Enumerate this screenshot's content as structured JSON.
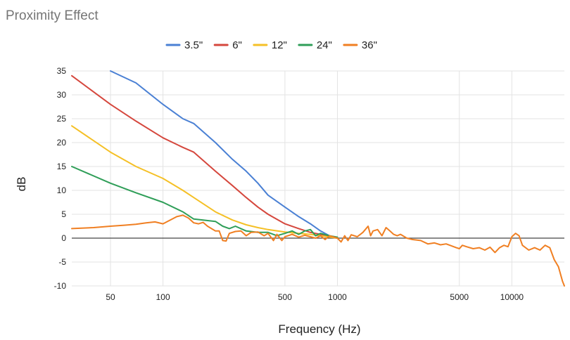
{
  "chart_data": {
    "type": "line",
    "title": "Proximity Effect",
    "xlabel": "Frequency (Hz)",
    "ylabel": "dB",
    "xscale": "log",
    "xlim": [
      30,
      20000
    ],
    "ylim": [
      -10,
      35
    ],
    "xticks": [
      {
        "value": 50,
        "label": "50"
      },
      {
        "value": 100,
        "label": "100"
      },
      {
        "value": 500,
        "label": "500"
      },
      {
        "value": 1000,
        "label": "1000"
      },
      {
        "value": 5000,
        "label": "5000"
      },
      {
        "value": 10000,
        "label": "10000"
      }
    ],
    "yticks": [
      {
        "value": 35,
        "label": "35"
      },
      {
        "value": 30,
        "label": "30"
      },
      {
        "value": 25,
        "label": "25"
      },
      {
        "value": 20,
        "label": "20"
      },
      {
        "value": 15,
        "label": "15"
      },
      {
        "value": 10,
        "label": "10"
      },
      {
        "value": 5,
        "label": "5"
      },
      {
        "value": 0,
        "label": "0"
      },
      {
        "value": -5,
        "label": "-5"
      },
      {
        "value": -10,
        "label": "-10"
      }
    ],
    "grid": true,
    "legend_position": "top",
    "series": [
      {
        "name": "3.5\"",
        "color": "#4a80d4",
        "points": [
          [
            50,
            35
          ],
          [
            70,
            32.5
          ],
          [
            100,
            28
          ],
          [
            130,
            25
          ],
          [
            150,
            24
          ],
          [
            200,
            20
          ],
          [
            250,
            16.5
          ],
          [
            300,
            14
          ],
          [
            350,
            11.5
          ],
          [
            400,
            9
          ],
          [
            500,
            6.5
          ],
          [
            600,
            4.5
          ],
          [
            700,
            3
          ],
          [
            800,
            1.5
          ],
          [
            900,
            0.5
          ],
          [
            1000,
            0
          ]
        ]
      },
      {
        "name": "6\"",
        "color": "#d5473d",
        "points": [
          [
            30,
            34
          ],
          [
            50,
            28
          ],
          [
            70,
            24.5
          ],
          [
            100,
            21
          ],
          [
            130,
            19
          ],
          [
            150,
            18
          ],
          [
            200,
            14
          ],
          [
            250,
            11
          ],
          [
            300,
            8.5
          ],
          [
            350,
            6.5
          ],
          [
            400,
            5
          ],
          [
            500,
            3
          ],
          [
            600,
            2
          ],
          [
            700,
            1.2
          ],
          [
            800,
            0.8
          ],
          [
            900,
            0.3
          ],
          [
            1000,
            0
          ]
        ]
      },
      {
        "name": "12\"",
        "color": "#f5c026",
        "points": [
          [
            30,
            23.5
          ],
          [
            50,
            18
          ],
          [
            70,
            15
          ],
          [
            100,
            12.5
          ],
          [
            130,
            10
          ],
          [
            150,
            8.5
          ],
          [
            200,
            5.5
          ],
          [
            250,
            3.8
          ],
          [
            300,
            2.8
          ],
          [
            350,
            2.2
          ],
          [
            400,
            1.8
          ],
          [
            500,
            1.3
          ],
          [
            600,
            1
          ],
          [
            700,
            0.8
          ],
          [
            800,
            0.5
          ],
          [
            1000,
            0
          ]
        ]
      },
      {
        "name": "24\"",
        "color": "#2f9e58",
        "points": [
          [
            30,
            15
          ],
          [
            50,
            11.5
          ],
          [
            70,
            9.5
          ],
          [
            100,
            7.5
          ],
          [
            130,
            5.5
          ],
          [
            150,
            4
          ],
          [
            200,
            3.5
          ],
          [
            220,
            2.5
          ],
          [
            240,
            2
          ],
          [
            260,
            2.5
          ],
          [
            300,
            1.5
          ],
          [
            350,
            1.2
          ],
          [
            400,
            1.2
          ],
          [
            450,
            0.5
          ],
          [
            500,
            1
          ],
          [
            550,
            1.5
          ],
          [
            600,
            0.8
          ],
          [
            650,
            1.5
          ],
          [
            700,
            1.8
          ],
          [
            750,
            0.5
          ],
          [
            800,
            1
          ],
          [
            900,
            0.5
          ],
          [
            1000,
            0.2
          ]
        ]
      },
      {
        "name": "36\"",
        "color": "#f07f22",
        "points": [
          [
            30,
            2
          ],
          [
            40,
            2.2
          ],
          [
            50,
            2.5
          ],
          [
            60,
            2.7
          ],
          [
            70,
            2.9
          ],
          [
            80,
            3.2
          ],
          [
            90,
            3.4
          ],
          [
            100,
            3
          ],
          [
            110,
            3.8
          ],
          [
            120,
            4.5
          ],
          [
            130,
            4.8
          ],
          [
            140,
            4.2
          ],
          [
            150,
            3.2
          ],
          [
            160,
            3
          ],
          [
            170,
            3.3
          ],
          [
            180,
            2.5
          ],
          [
            200,
            1.5
          ],
          [
            210,
            1.5
          ],
          [
            220,
            -0.5
          ],
          [
            230,
            -0.6
          ],
          [
            240,
            1
          ],
          [
            260,
            1.4
          ],
          [
            280,
            1.5
          ],
          [
            300,
            0.5
          ],
          [
            320,
            1.2
          ],
          [
            350,
            1.3
          ],
          [
            380,
            0.5
          ],
          [
            400,
            1
          ],
          [
            430,
            -0.5
          ],
          [
            450,
            0.8
          ],
          [
            480,
            -0.5
          ],
          [
            500,
            0.3
          ],
          [
            550,
            0.8
          ],
          [
            600,
            0.2
          ],
          [
            650,
            0.6
          ],
          [
            700,
            0.3
          ],
          [
            750,
            0
          ],
          [
            800,
            0.5
          ],
          [
            850,
            -0.3
          ],
          [
            900,
            0.5
          ],
          [
            1000,
            0
          ],
          [
            1050,
            -0.8
          ],
          [
            1100,
            0.5
          ],
          [
            1150,
            -0.5
          ],
          [
            1200,
            0.7
          ],
          [
            1300,
            0.3
          ],
          [
            1400,
            1.2
          ],
          [
            1500,
            2.5
          ],
          [
            1550,
            0.5
          ],
          [
            1600,
            1.5
          ],
          [
            1700,
            1.8
          ],
          [
            1800,
            0.5
          ],
          [
            1900,
            2.2
          ],
          [
            2000,
            1.5
          ],
          [
            2100,
            0.8
          ],
          [
            2200,
            0.5
          ],
          [
            2300,
            0.8
          ],
          [
            2500,
            0
          ],
          [
            2700,
            -0.3
          ],
          [
            3000,
            -0.5
          ],
          [
            3300,
            -1.2
          ],
          [
            3600,
            -1
          ],
          [
            3900,
            -1.4
          ],
          [
            4200,
            -1.2
          ],
          [
            4500,
            -1.6
          ],
          [
            4800,
            -2
          ],
          [
            5000,
            -2.2
          ],
          [
            5200,
            -1.5
          ],
          [
            5500,
            -1.8
          ],
          [
            6000,
            -2.2
          ],
          [
            6500,
            -2
          ],
          [
            7000,
            -2.5
          ],
          [
            7500,
            -1.9
          ],
          [
            8000,
            -3
          ],
          [
            8500,
            -2
          ],
          [
            9000,
            -1.5
          ],
          [
            9500,
            -1.8
          ],
          [
            10000,
            0.3
          ],
          [
            10500,
            1
          ],
          [
            11000,
            0.5
          ],
          [
            11500,
            -1.5
          ],
          [
            12500,
            -2.5
          ],
          [
            13500,
            -2
          ],
          [
            14500,
            -2.5
          ],
          [
            15500,
            -1.5
          ],
          [
            16500,
            -2
          ],
          [
            17500,
            -4.5
          ],
          [
            18500,
            -6
          ],
          [
            19500,
            -9
          ],
          [
            20000,
            -10
          ]
        ]
      }
    ]
  }
}
